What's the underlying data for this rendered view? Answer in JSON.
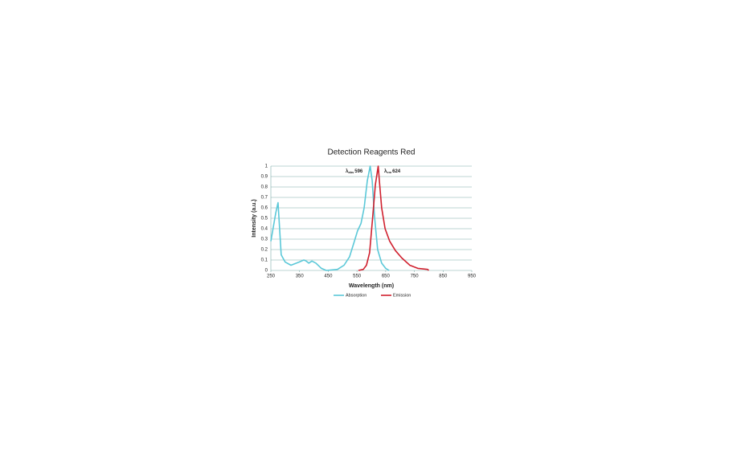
{
  "chart_data": {
    "type": "line",
    "title": "Detection Reagents Red",
    "x_label": "Wavelength (nm)",
    "y_label": "Intensity (a.u.)",
    "xlim": [
      250,
      950
    ],
    "xticks": [
      250,
      350,
      450,
      550,
      650,
      750,
      850,
      950
    ],
    "ylim": [
      0,
      1
    ],
    "yticks": [
      0,
      0.1,
      0.2,
      0.3,
      0.4,
      0.5,
      0.6,
      0.7,
      0.8,
      0.9,
      1
    ],
    "grid": true,
    "annotations": [
      {
        "symbol": "λ",
        "sub": "abs",
        "text": "596",
        "color": "#5bc8d8"
      },
      {
        "symbol": "λ",
        "sub": "em",
        "text": "624",
        "color": "#d0202e"
      }
    ],
    "series": [
      {
        "name": "Absorption",
        "color": "#5bc8d8",
        "x": [
          250,
          267,
          275,
          286,
          300,
          320,
          348,
          365,
          373,
          382,
          393,
          407,
          426,
          443,
          482,
          505,
          524,
          541,
          552,
          564,
          575,
          586,
          596,
          603,
          611,
          622,
          636,
          650,
          662
        ],
        "values": [
          0.28,
          0.55,
          0.65,
          0.15,
          0.08,
          0.05,
          0.08,
          0.1,
          0.09,
          0.07,
          0.09,
          0.07,
          0.02,
          0,
          0.01,
          0.05,
          0.13,
          0.28,
          0.38,
          0.45,
          0.6,
          0.86,
          1,
          0.86,
          0.52,
          0.2,
          0.07,
          0.02,
          0
        ]
      },
      {
        "name": "Emission",
        "color": "#d0202e",
        "x": [
          555,
          572,
          583,
          594,
          605,
          614,
          624,
          628,
          636,
          648,
          664,
          684,
          706,
          734,
          762,
          796,
          800
        ],
        "values": [
          0,
          0.01,
          0.05,
          0.17,
          0.52,
          0.82,
          1,
          0.86,
          0.6,
          0.4,
          0.28,
          0.19,
          0.12,
          0.05,
          0.02,
          0.01,
          0
        ]
      }
    ]
  }
}
